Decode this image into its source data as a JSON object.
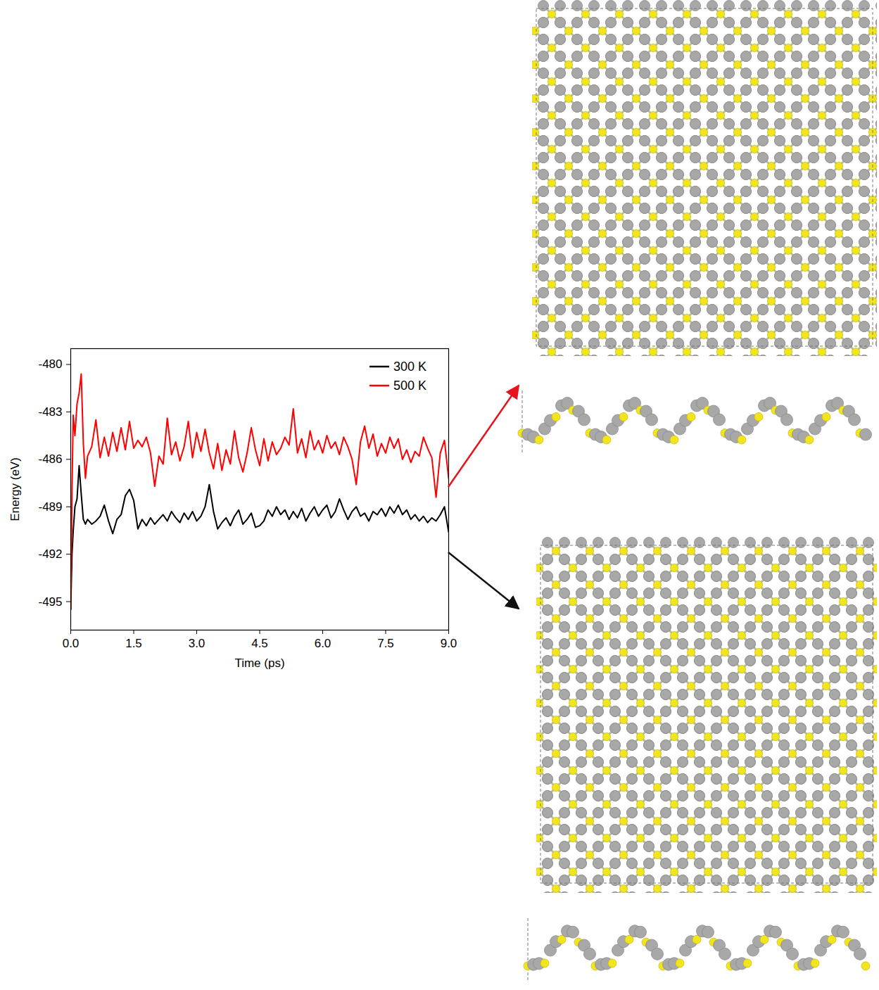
{
  "chart_data": {
    "type": "line",
    "x_label": "Time (ps)",
    "y_label": "Energy (eV)",
    "xlim": [
      0,
      9
    ],
    "ylim": [
      -496.8,
      -479.0
    ],
    "xticks": [
      {
        "value": 0,
        "label": "0.0"
      },
      1.5,
      {
        "value": 3,
        "label": "3.0"
      },
      4.5,
      {
        "value": 6,
        "label": "6.0"
      },
      7.5,
      {
        "value": 9,
        "label": "9.0"
      }
    ],
    "yticks": [
      -495,
      -492,
      -489,
      -486,
      -483,
      -480
    ],
    "grid": false,
    "legend": "top-right",
    "x": [
      0,
      0.03,
      0.06,
      0.1,
      0.15,
      0.2,
      0.25,
      0.3,
      0.35,
      0.4,
      0.5,
      0.6,
      0.7,
      0.8,
      0.9,
      1.0,
      1.1,
      1.2,
      1.3,
      1.4,
      1.5,
      1.6,
      1.7,
      1.8,
      1.9,
      2.0,
      2.1,
      2.2,
      2.3,
      2.4,
      2.5,
      2.6,
      2.7,
      2.8,
      2.9,
      3.0,
      3.1,
      3.2,
      3.3,
      3.4,
      3.5,
      3.6,
      3.7,
      3.8,
      3.9,
      4.0,
      4.1,
      4.2,
      4.3,
      4.4,
      4.5,
      4.6,
      4.7,
      4.8,
      4.9,
      5.0,
      5.1,
      5.2,
      5.3,
      5.4,
      5.5,
      5.6,
      5.7,
      5.8,
      5.9,
      6.0,
      6.1,
      6.2,
      6.3,
      6.4,
      6.5,
      6.6,
      6.7,
      6.8,
      6.9,
      7.0,
      7.1,
      7.2,
      7.3,
      7.4,
      7.5,
      7.6,
      7.7,
      7.8,
      7.9,
      8.0,
      8.1,
      8.2,
      8.3,
      8.4,
      8.5,
      8.6,
      8.7,
      8.8,
      8.9,
      9.0
    ],
    "series": [
      {
        "name": "300 K",
        "color": "#000000",
        "values": [
          -495.5,
          -492.0,
          -490.5,
          -489.0,
          -488.5,
          -486.4,
          -488.2,
          -489.8,
          -490.1,
          -489.8,
          -490.1,
          -489.9,
          -489.6,
          -488.9,
          -489.9,
          -490.7,
          -489.8,
          -489.5,
          -488.3,
          -487.9,
          -488.6,
          -490.4,
          -489.8,
          -490.2,
          -489.7,
          -490.1,
          -489.8,
          -489.5,
          -489.9,
          -489.3,
          -489.7,
          -490.0,
          -489.4,
          -489.8,
          -489.3,
          -489.9,
          -489.6,
          -489.0,
          -487.6,
          -489.3,
          -490.4,
          -490.0,
          -489.7,
          -490.2,
          -489.6,
          -489.2,
          -490.1,
          -489.8,
          -489.4,
          -490.3,
          -490.2,
          -489.9,
          -489.2,
          -489.6,
          -489.0,
          -489.5,
          -489.2,
          -489.8,
          -489.3,
          -489.7,
          -489.1,
          -489.9,
          -489.4,
          -489.0,
          -489.6,
          -489.2,
          -488.9,
          -489.7,
          -489.3,
          -488.5,
          -489.2,
          -489.8,
          -489.3,
          -489.0,
          -489.6,
          -489.4,
          -489.9,
          -489.3,
          -489.5,
          -489.1,
          -489.6,
          -489.0,
          -489.4,
          -488.9,
          -489.5,
          -489.2,
          -489.8,
          -489.5,
          -489.9,
          -489.6,
          -490.0,
          -489.7,
          -489.9,
          -489.5,
          -489.0,
          -490.6
        ]
      },
      {
        "name": "500 K",
        "color": "#ff0000",
        "values": [
          -495.5,
          -488.0,
          -483.2,
          -484.5,
          -482.5,
          -481.8,
          -480.6,
          -485.0,
          -487.2,
          -485.8,
          -485.2,
          -483.5,
          -485.9,
          -484.6,
          -485.8,
          -484.3,
          -485.5,
          -484.0,
          -485.4,
          -483.6,
          -485.3,
          -484.8,
          -485.2,
          -484.6,
          -485.6,
          -487.7,
          -485.8,
          -486.3,
          -483.4,
          -485.7,
          -484.9,
          -486.1,
          -485.2,
          -483.6,
          -485.9,
          -484.3,
          -485.5,
          -484.1,
          -485.6,
          -486.6,
          -485.0,
          -486.7,
          -485.4,
          -486.3,
          -484.2,
          -485.9,
          -486.8,
          -485.6,
          -484.0,
          -485.4,
          -486.4,
          -484.7,
          -486.1,
          -484.9,
          -485.7,
          -485.3,
          -484.6,
          -485.1,
          -482.8,
          -485.6,
          -484.7,
          -485.9,
          -484.2,
          -485.4,
          -484.8,
          -485.6,
          -484.5,
          -485.3,
          -484.9,
          -485.7,
          -484.6,
          -485.2,
          -486.0,
          -487.6,
          -484.9,
          -483.9,
          -485.3,
          -484.4,
          -485.8,
          -485.0,
          -485.6,
          -484.6,
          -485.3,
          -484.7,
          -486.0,
          -485.4,
          -486.2,
          -485.5,
          -485.8,
          -484.6,
          -485.3,
          -485.9,
          -488.4,
          -485.6,
          -484.8,
          -487.2
        ]
      }
    ]
  }
}
